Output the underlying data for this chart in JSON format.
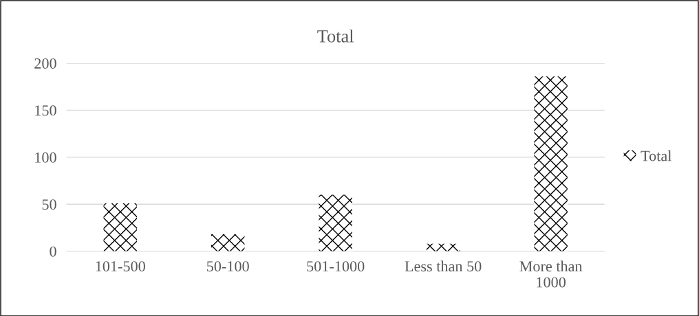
{
  "chart_data": {
    "type": "bar",
    "title": "Total",
    "categories": [
      "101-500",
      "50-100",
      "501-1000",
      "Less than 50",
      "More than\n1000"
    ],
    "series": [
      {
        "name": "Total",
        "color": "#000000",
        "values": [
          51,
          18,
          60,
          8,
          186
        ]
      }
    ],
    "ylim": [
      0,
      200
    ],
    "yticks": [
      0,
      50,
      100,
      150,
      200
    ],
    "grid": "y",
    "legend": "right"
  }
}
